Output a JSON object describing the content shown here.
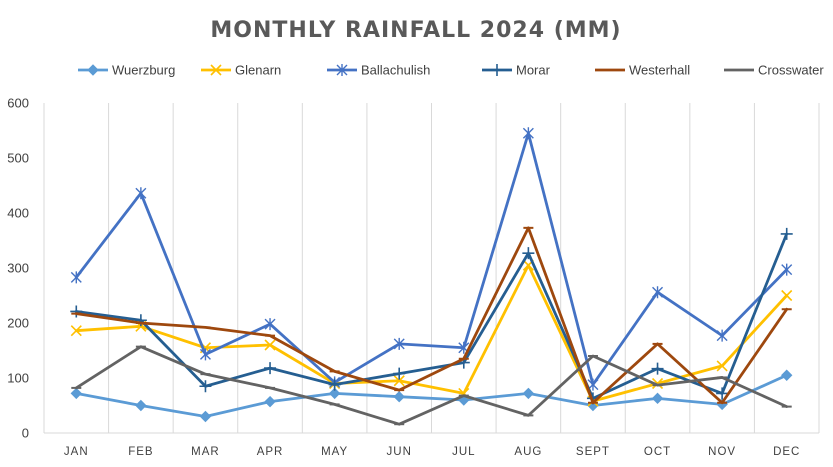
{
  "chart_data": {
    "type": "line",
    "title": "MONTHLY RAINFALL 2024 (MM)",
    "xlabel": "",
    "ylabel": "",
    "ylim": [
      0,
      600
    ],
    "yticks": [
      0,
      100,
      200,
      300,
      400,
      500,
      600
    ],
    "ytick_labels": [
      "0",
      "100",
      "200",
      "300",
      "400",
      "500",
      "600"
    ],
    "grid": "vertical",
    "legend": "top",
    "categories": [
      "JAN",
      "FEB",
      "MAR",
      "APR",
      "MAY",
      "JUN",
      "JUL",
      "AUG",
      "SEPT",
      "OCT",
      "NOV",
      "DEC"
    ],
    "series": [
      {
        "name": "Wuerzburg",
        "color": "#5b9bd5",
        "marker": "diamond",
        "values": [
          72,
          50,
          30,
          57,
          72,
          66,
          60,
          72,
          50,
          63,
          52,
          105
        ]
      },
      {
        "name": "Glenarn",
        "color": "#ffc000",
        "marker": "x",
        "values": [
          186,
          194,
          155,
          160,
          90,
          95,
          72,
          305,
          58,
          90,
          122,
          250
        ]
      },
      {
        "name": "Ballachulish",
        "color": "#4472c4",
        "marker": "star",
        "values": [
          283,
          436,
          143,
          198,
          92,
          162,
          155,
          545,
          88,
          256,
          177,
          297
        ]
      },
      {
        "name": "Morar",
        "color": "#255e91",
        "marker": "plus",
        "values": [
          221,
          205,
          85,
          118,
          88,
          108,
          128,
          327,
          63,
          117,
          72,
          362
        ]
      },
      {
        "name": "Westerhall",
        "color": "#9e480e",
        "marker": "dash",
        "values": [
          217,
          200,
          192,
          177,
          112,
          78,
          135,
          373,
          55,
          162,
          55,
          225
        ]
      },
      {
        "name": "Crosswater",
        "color": "#636363",
        "marker": "dash",
        "values": [
          82,
          157,
          107,
          82,
          52,
          16,
          68,
          32,
          140,
          87,
          101,
          48
        ]
      }
    ]
  }
}
